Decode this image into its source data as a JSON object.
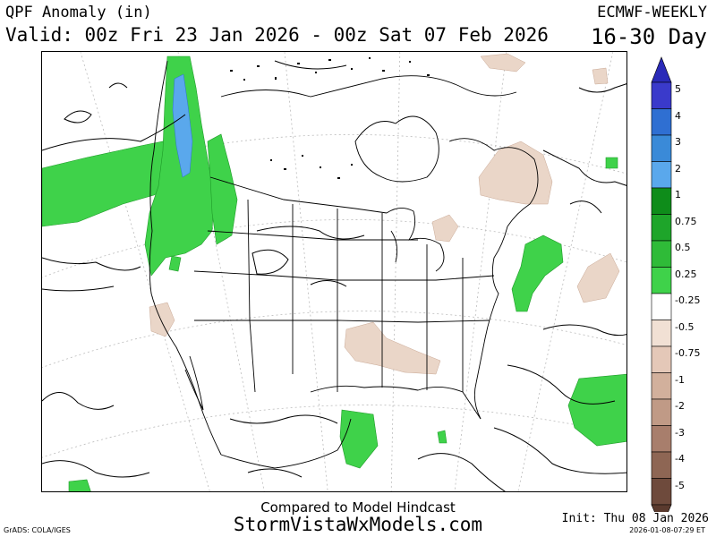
{
  "header": {
    "title": "QPF Anomaly (in)",
    "valid": "Valid: 00z Fri 23 Jan 2026 - 00z Sat 07 Feb 2026",
    "model": "ECMWF-WEEKLY",
    "range": "16-30 Day"
  },
  "footer": {
    "compared": "Compared to Model Hindcast",
    "website": "StormVistaWxModels.com",
    "grads": "GrADS: COLA/IGES",
    "init": "Init: Thu 08 Jan 2026",
    "timestamp": "2026-01-08-07:29 ET"
  },
  "legend": {
    "items": [
      {
        "label": "5",
        "color": "#3a3acb"
      },
      {
        "label": "4",
        "color": "#2f6fd2"
      },
      {
        "label": "3",
        "color": "#3a8ad8"
      },
      {
        "label": "2",
        "color": "#5aa8ec"
      },
      {
        "label": "1",
        "color": "#0e8c1a"
      },
      {
        "label": "0.75",
        "color": "#1ea52a"
      },
      {
        "label": "0.5",
        "color": "#2fbb38"
      },
      {
        "label": "0.25",
        "color": "#3fd24a"
      },
      {
        "label": "-0.25",
        "color": "#ffffff"
      },
      {
        "label": "-0.5",
        "color": "#f1e0d4"
      },
      {
        "label": "-0.75",
        "color": "#e4c8b8"
      },
      {
        "label": "-1",
        "color": "#d2b09c"
      },
      {
        "label": "-2",
        "color": "#c09a86"
      },
      {
        "label": "-3",
        "color": "#a87e6c"
      },
      {
        "label": "-4",
        "color": "#8e6654"
      },
      {
        "label": "-5",
        "color": "#6e4a3c"
      }
    ],
    "arrow_top_color": "#2a2ab8",
    "arrow_bottom_color": "#5a3a2e"
  },
  "map": {
    "projection": "polar stereographic",
    "region": "North America",
    "wet_color": "#3fd24a",
    "dry_color": "#ead6c8",
    "very_wet_color": "#5aa8ec"
  }
}
